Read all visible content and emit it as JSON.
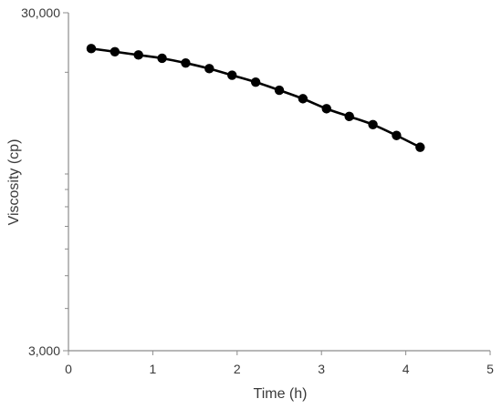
{
  "chart_data": {
    "type": "line",
    "xlabel": "Time (h)",
    "ylabel": "Viscosity (cp)",
    "xlim": [
      0,
      5
    ],
    "ylim": [
      3000,
      30000
    ],
    "y_scale": "log",
    "x_ticks": [
      0,
      1,
      2,
      3,
      4,
      5
    ],
    "x_tick_labels": [
      "0",
      "1",
      "2",
      "3",
      "4",
      "5"
    ],
    "y_major_ticks": [
      3000,
      30000
    ],
    "y_tick_labels": [
      "3,000",
      "30,000"
    ],
    "y_minor_ticks": [
      4000,
      5000,
      6000,
      7000,
      8000,
      9000,
      10000,
      20000
    ],
    "grid": false,
    "marker": "filled-circle",
    "line_color": "#000000",
    "series": [
      {
        "x": [
          0.27,
          0.55,
          0.83,
          1.11,
          1.39,
          1.67,
          1.94,
          2.22,
          2.5,
          2.78,
          3.06,
          3.33,
          3.61,
          3.89,
          4.17
        ],
        "y": [
          23500,
          23000,
          22500,
          22000,
          21300,
          20500,
          19600,
          18700,
          17700,
          16700,
          15600,
          14800,
          14000,
          13000,
          12000
        ]
      }
    ]
  }
}
